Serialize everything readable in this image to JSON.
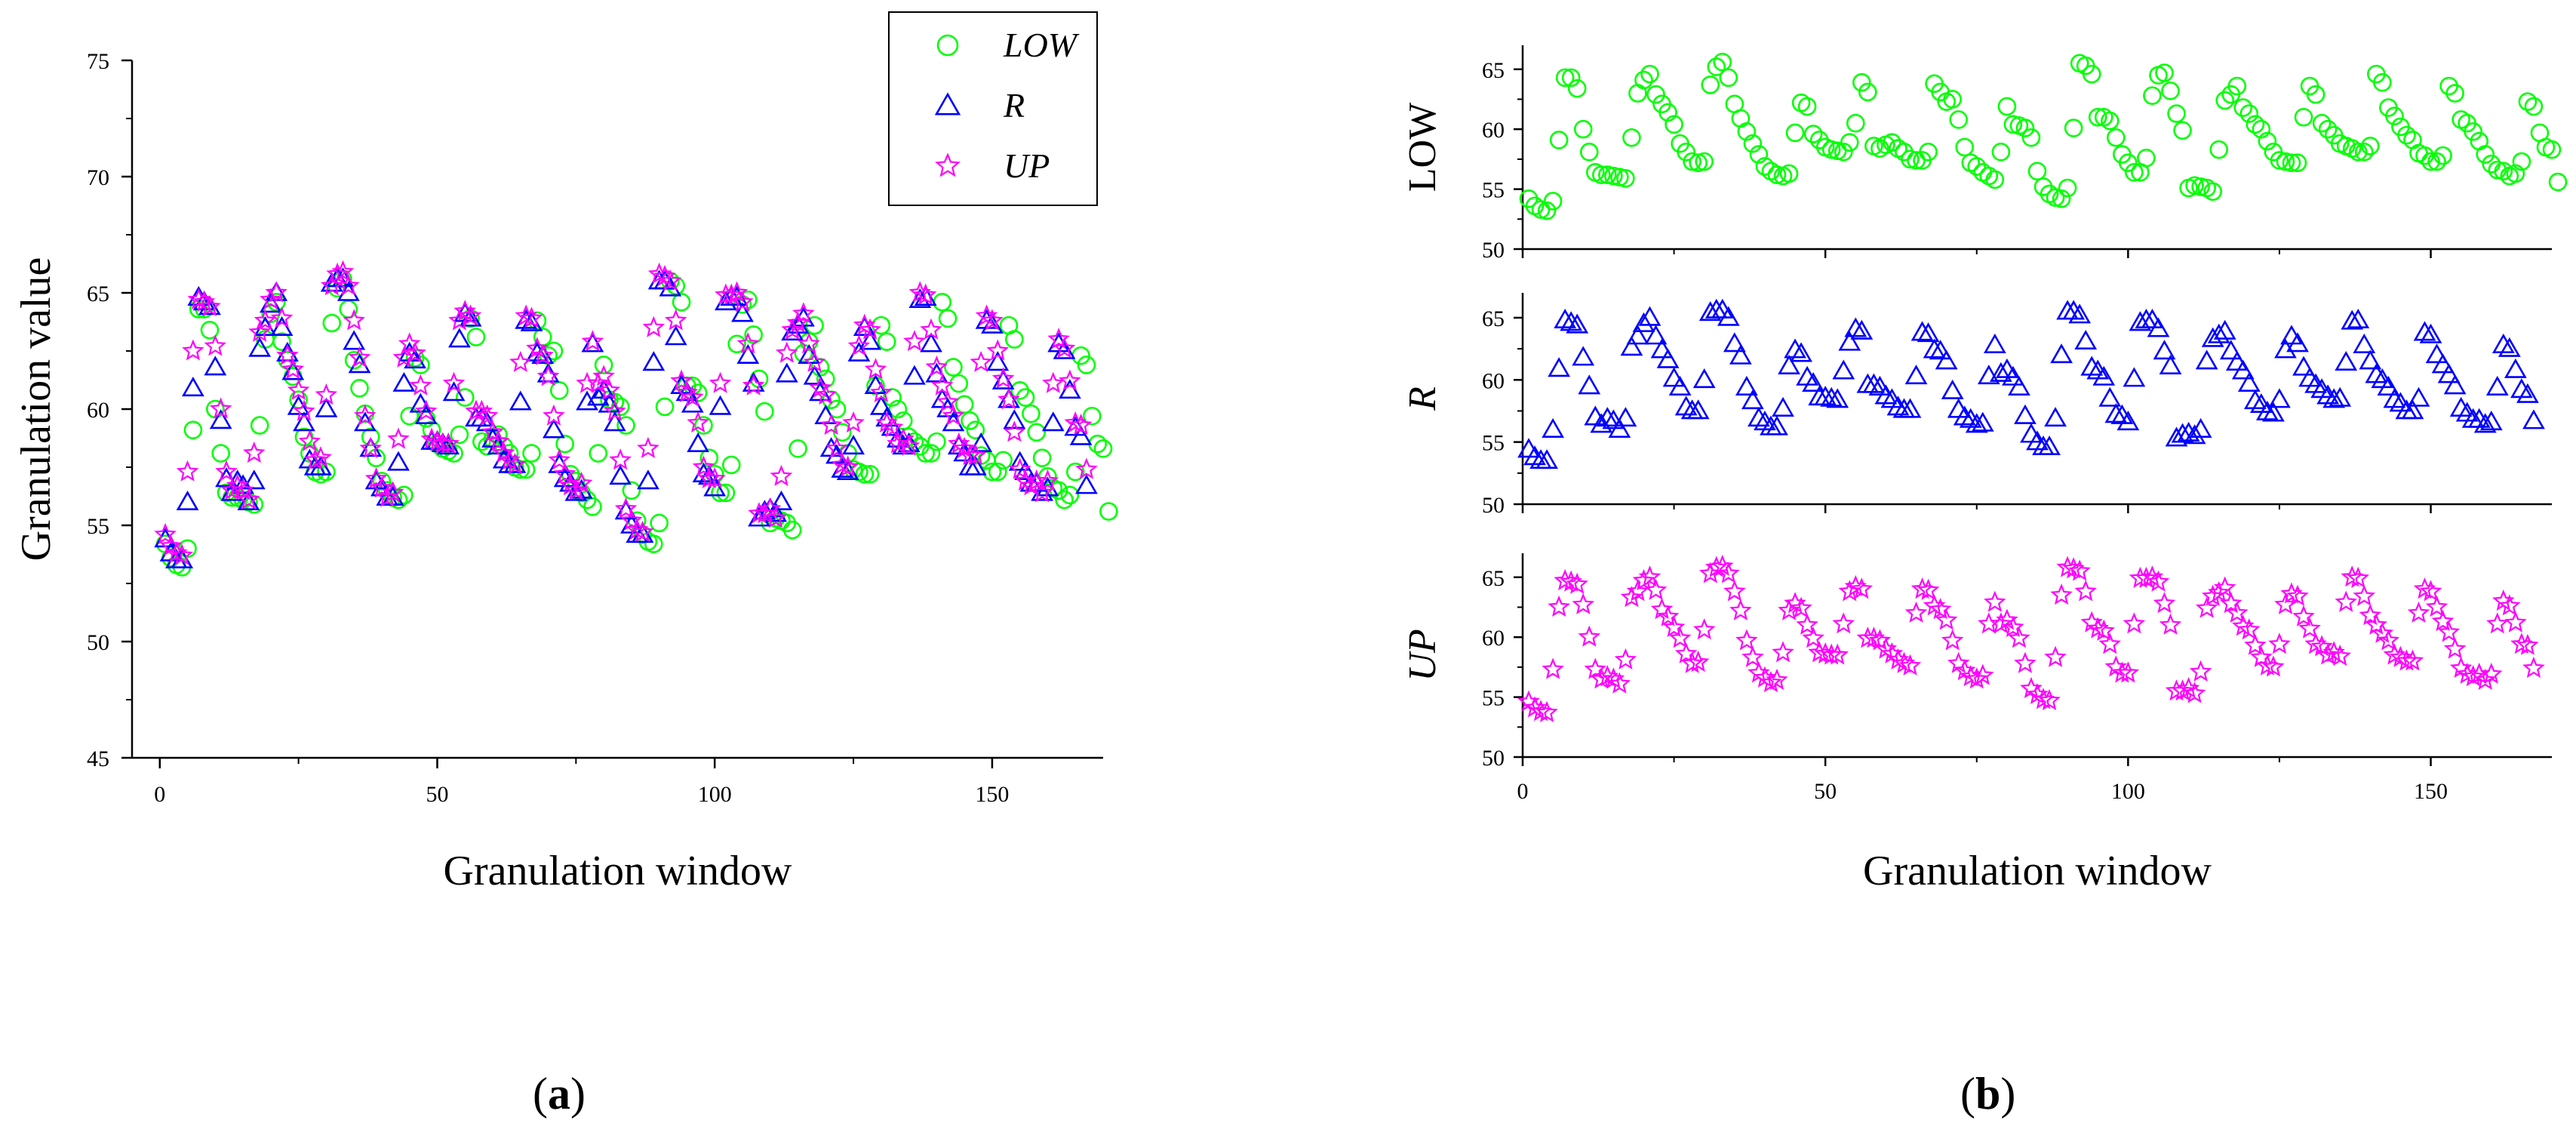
{
  "colors": {
    "low": "#00ff00",
    "r": "#0000ff",
    "up": "#ff00ff",
    "axis": "#000000"
  },
  "panel_labels": [
    {
      "open": "(",
      "letter": "a",
      "close": ")"
    },
    {
      "open": "(",
      "letter": "b",
      "close": ")"
    }
  ],
  "chart_data": [
    {
      "type": "scatter",
      "xlabel": "Granulation window",
      "ylabel": "Granulation value",
      "xlim": [
        -5,
        170
      ],
      "ylim": [
        45,
        75
      ],
      "xticks": [
        0,
        50,
        100,
        150
      ],
      "yticks": [
        45,
        50,
        55,
        60,
        65,
        70,
        75
      ],
      "legend": {
        "position": "top-right",
        "entries": [
          "LOW",
          "R",
          "UP"
        ]
      },
      "series": [
        {
          "name": "LOW",
          "marker": "circle",
          "color": "#00ff00",
          "x_start": 1,
          "values": [
            54.2,
            53.6,
            53.3,
            53.2,
            54.0,
            59.1,
            64.3,
            64.3,
            63.4,
            60.0,
            58.1,
            56.4,
            56.2,
            56.2,
            56.1,
            56.0,
            55.9,
            59.3,
            63.0,
            64.1,
            64.6,
            62.9,
            62.1,
            61.4,
            60.4,
            58.8,
            58.1,
            57.3,
            57.2,
            57.3,
            63.7,
            65.2,
            65.6,
            64.3,
            62.1,
            60.9,
            59.8,
            58.8,
            57.9,
            56.9,
            56.5,
            56.2,
            56.1,
            56.3,
            59.7,
            62.2,
            61.9,
            59.6,
            59.1,
            58.5,
            58.3,
            58.2,
            58.1,
            58.9,
            60.5,
            63.9,
            63.1,
            58.6,
            58.4,
            58.7,
            58.9,
            58.4,
            58.1,
            57.5,
            57.4,
            57.4,
            58.1,
            63.8,
            63.1,
            62.3,
            62.5,
            60.8,
            58.5,
            57.2,
            56.9,
            56.4,
            56.1,
            55.8,
            58.1,
            61.9,
            60.4,
            60.3,
            60.1,
            59.3,
            56.5,
            55.2,
            54.6,
            54.3,
            54.2,
            55.1,
            60.1,
            65.5,
            65.3,
            64.6,
            61.0,
            61.0,
            60.7,
            59.3,
            57.9,
            57.2,
            56.4,
            56.4,
            57.6,
            62.8,
            64.5,
            64.7,
            63.2,
            61.3,
            59.9,
            55.1,
            55.3,
            55.2,
            55.1,
            54.8,
            58.3,
            62.4,
            62.9,
            63.6,
            61.8,
            61.3,
            60.4,
            60.0,
            59.0,
            58.1,
            57.4,
            57.3,
            57.2,
            57.2,
            61.0,
            63.6,
            62.9,
            60.5,
            60.0,
            59.5,
            58.8,
            58.6,
            58.4,
            58.1,
            58.1,
            58.6,
            64.6,
            63.9,
            61.8,
            61.1,
            60.2,
            59.5,
            59.1,
            58.0,
            57.8,
            57.3,
            57.3,
            57.8,
            63.6,
            63.0,
            60.8,
            60.5,
            59.8,
            59.0,
            57.9,
            57.1,
            56.6,
            56.5,
            56.1,
            56.3,
            57.3,
            62.3,
            61.9,
            59.7,
            58.5,
            58.3,
            55.6
          ]
        },
        {
          "name": "R",
          "marker": "triangle",
          "color": "#0000ff",
          "x_start": 1,
          "values": [
            54.4,
            53.8,
            53.5,
            53.5,
            56.0,
            60.9,
            64.8,
            64.6,
            64.4,
            61.8,
            59.5,
            57.0,
            56.4,
            56.9,
            56.7,
            56.0,
            56.9,
            62.6,
            63.5,
            64.5,
            65.0,
            63.5,
            62.4,
            61.6,
            60.1,
            59.4,
            57.8,
            57.5,
            57.5,
            60.0,
            65.4,
            65.6,
            65.6,
            65.0,
            62.9,
            61.9,
            59.4,
            58.3,
            56.9,
            56.6,
            56.2,
            56.2,
            57.7,
            61.1,
            62.4,
            62.1,
            60.2,
            59.7,
            58.6,
            58.6,
            58.5,
            58.4,
            60.7,
            63.0,
            64.1,
            63.9,
            59.6,
            59.6,
            59.4,
            58.7,
            58.4,
            57.8,
            57.6,
            57.6,
            60.3,
            63.8,
            63.7,
            62.4,
            62.3,
            61.5,
            59.1,
            57.6,
            57.0,
            56.8,
            56.4,
            56.5,
            60.3,
            62.8,
            60.5,
            60.8,
            60.2,
            59.4,
            57.1,
            55.6,
            55.0,
            54.6,
            54.6,
            56.9,
            62.0,
            65.5,
            65.5,
            65.2,
            63.1,
            61.0,
            60.7,
            60.2,
            58.5,
            57.2,
            57.1,
            56.6,
            60.1,
            64.6,
            64.8,
            64.8,
            64.1,
            62.3,
            61.1,
            55.3,
            55.6,
            55.7,
            55.5,
            56.0,
            61.5,
            63.3,
            63.6,
            63.9,
            62.3,
            61.4,
            60.7,
            59.7,
            58.3,
            58.0,
            57.4,
            57.3,
            58.4,
            62.4,
            63.5,
            62.9,
            61.0,
            60.1,
            59.6,
            59.2,
            58.7,
            58.4,
            58.5,
            61.4,
            64.7,
            64.8,
            62.8,
            61.5,
            60.4,
            60.0,
            59.4,
            58.4,
            58.1,
            57.5,
            57.5,
            58.5,
            63.8,
            63.6,
            62.0,
            61.2,
            60.4,
            59.5,
            57.7,
            57.3,
            56.8,
            56.8,
            56.4,
            56.6,
            59.4,
            62.8,
            62.5,
            60.8,
            59.2,
            58.8,
            56.7
          ]
        },
        {
          "name": "UP",
          "marker": "star",
          "color": "#ff00ff",
          "x_start": 1,
          "values": [
            54.6,
            54.1,
            53.8,
            53.7,
            57.3,
            62.5,
            64.7,
            64.6,
            64.4,
            62.7,
            60.0,
            57.3,
            56.5,
            56.7,
            56.5,
            56.1,
            58.1,
            63.3,
            63.8,
            64.7,
            65.0,
            63.9,
            62.3,
            61.7,
            60.8,
            59.9,
            58.6,
            57.8,
            57.9,
            60.6,
            65.3,
            65.8,
            65.9,
            65.3,
            63.8,
            62.2,
            59.7,
            58.3,
            57.0,
            56.6,
            56.2,
            56.4,
            58.7,
            62.2,
            62.8,
            62.4,
            61.0,
            59.9,
            58.7,
            58.6,
            58.5,
            58.5,
            61.1,
            63.8,
            64.2,
            64.0,
            59.9,
            59.9,
            59.7,
            59.0,
            58.6,
            58.1,
            57.8,
            57.6,
            62.0,
            64.0,
            63.9,
            62.6,
            62.3,
            61.4,
            59.7,
            57.8,
            57.2,
            56.7,
            56.5,
            56.8,
            61.1,
            62.9,
            61.1,
            61.4,
            60.8,
            59.9,
            57.8,
            55.7,
            55.2,
            54.8,
            54.7,
            58.3,
            63.5,
            65.8,
            65.7,
            65.5,
            63.8,
            61.2,
            60.7,
            60.5,
            59.4,
            57.5,
            57.0,
            57.0,
            61.1,
            64.9,
            64.9,
            65.0,
            64.6,
            62.8,
            61.0,
            55.5,
            55.5,
            55.7,
            55.3,
            57.1,
            62.4,
            63.4,
            63.7,
            64.1,
            62.8,
            62.0,
            60.9,
            60.6,
            59.3,
            58.3,
            57.6,
            57.5,
            59.4,
            62.7,
            63.6,
            63.4,
            61.7,
            60.7,
            59.4,
            59.2,
            58.5,
            58.7,
            58.4,
            62.9,
            65.0,
            64.9,
            63.4,
            61.8,
            61.0,
            60.3,
            59.7,
            58.5,
            58.3,
            58.0,
            58.0,
            62.0,
            64.0,
            63.8,
            62.5,
            61.3,
            60.4,
            59.0,
            57.4,
            56.9,
            56.7,
            56.9,
            56.4,
            56.9,
            61.1,
            63.0,
            62.6,
            61.2,
            59.4,
            59.3,
            57.4
          ]
        }
      ]
    },
    {
      "type": "scatter",
      "xlabel": "Granulation window",
      "xlim": [
        0,
        170
      ],
      "xticks": [
        0,
        50,
        100,
        150
      ],
      "panels": [
        {
          "ylabel": "LOW",
          "ylabel_italic": false,
          "series_ref": "LOW",
          "ylim": [
            50,
            67
          ],
          "yticks": [
            50,
            55,
            60,
            65
          ]
        },
        {
          "ylabel": "R",
          "ylabel_italic": true,
          "series_ref": "R",
          "ylim": [
            50,
            67
          ],
          "yticks": [
            50,
            55,
            60,
            65
          ]
        },
        {
          "ylabel": "UP",
          "ylabel_italic": true,
          "series_ref": "UP",
          "ylim": [
            50,
            67
          ],
          "yticks": [
            50,
            55,
            60,
            65
          ]
        }
      ]
    }
  ]
}
